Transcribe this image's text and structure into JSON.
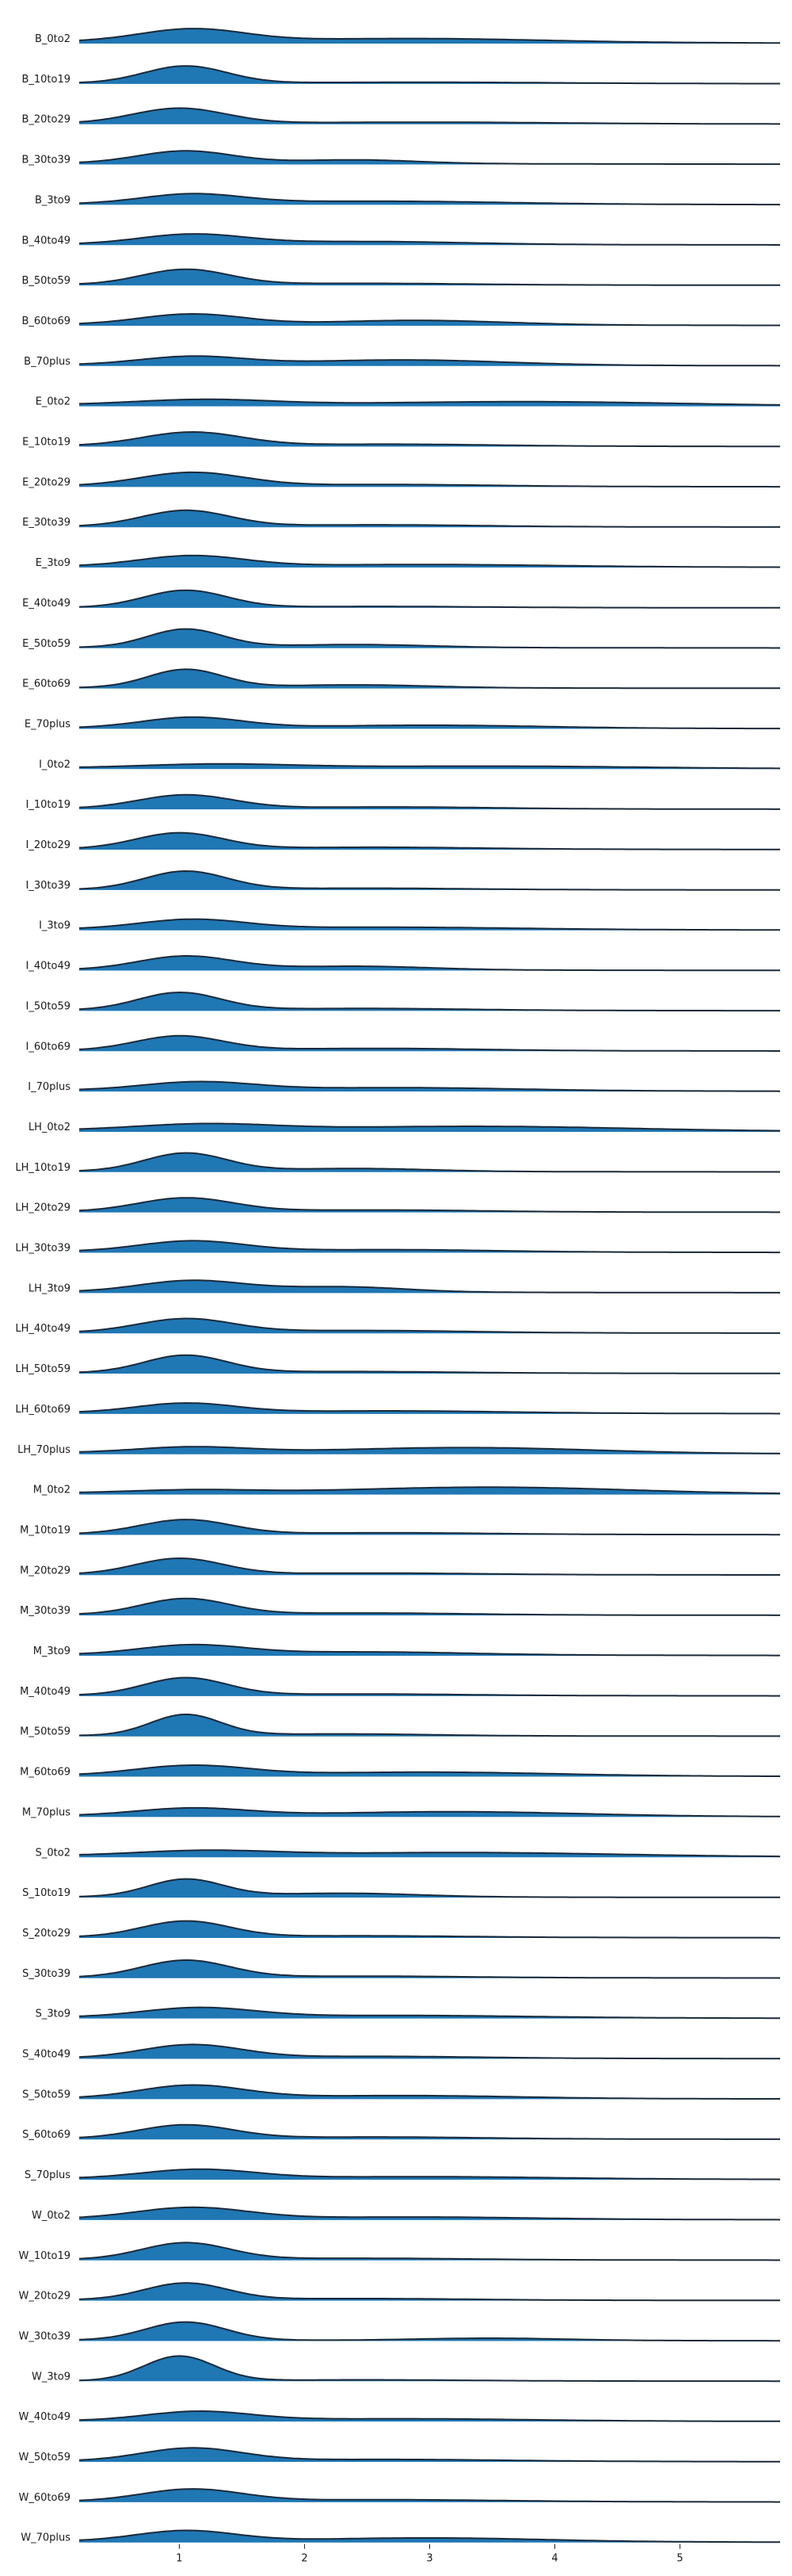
{
  "chart_data": {
    "type": "ridgeline",
    "xlim": [
      0.2,
      5.8
    ],
    "xticks": [
      "1",
      "2",
      "3",
      "4",
      "5"
    ],
    "fill_color": "#1f77b4",
    "line_color": "#1b2a3a",
    "rows": [
      {
        "label": "B_0to2",
        "peak": 1.1,
        "w": 0.42,
        "h": 0.33,
        "bump": 2.9,
        "bw": 1.0,
        "bh": 0.1,
        "floor": 0.05
      },
      {
        "label": "B_10to19",
        "peak": 1.05,
        "w": 0.33,
        "h": 0.45,
        "bump": 3.0,
        "bw": 1.0,
        "bh": 0.03,
        "floor": 0.02
      },
      {
        "label": "B_20to29",
        "peak": 1.0,
        "w": 0.37,
        "h": 0.4,
        "bump": 3.0,
        "bw": 1.0,
        "bh": 0.04,
        "floor": 0.02
      },
      {
        "label": "B_30to39",
        "peak": 1.05,
        "w": 0.38,
        "h": 0.33,
        "bump": 2.4,
        "bw": 0.5,
        "bh": 0.1,
        "floor": 0.03
      },
      {
        "label": "B_3to9",
        "peak": 1.1,
        "w": 0.4,
        "h": 0.25,
        "bump": 2.6,
        "bw": 1.0,
        "bh": 0.08,
        "floor": 0.02
      },
      {
        "label": "B_40to49",
        "peak": 1.1,
        "w": 0.42,
        "h": 0.26,
        "bump": 2.5,
        "bw": 0.8,
        "bh": 0.08,
        "floor": 0.02
      },
      {
        "label": "B_50to59",
        "peak": 1.05,
        "w": 0.35,
        "h": 0.4,
        "bump": 2.5,
        "bw": 0.8,
        "bh": 0.04,
        "floor": 0.02
      },
      {
        "label": "B_60to69",
        "peak": 1.1,
        "w": 0.42,
        "h": 0.28,
        "bump": 2.9,
        "bw": 0.7,
        "bh": 0.12,
        "floor": 0.03
      },
      {
        "label": "B_70plus",
        "peak": 1.1,
        "w": 0.42,
        "h": 0.22,
        "bump": 2.8,
        "bw": 0.8,
        "bh": 0.14,
        "floor": 0.03
      },
      {
        "label": "E_0to2",
        "peak": 1.2,
        "w": 0.55,
        "h": 0.14,
        "bump": 3.8,
        "bw": 1.2,
        "bh": 0.1,
        "floor": 0.04
      },
      {
        "label": "E_10to19",
        "peak": 1.1,
        "w": 0.4,
        "h": 0.36,
        "bump": 2.7,
        "bw": 0.8,
        "bh": 0.05,
        "floor": 0.02
      },
      {
        "label": "E_20to29",
        "peak": 1.1,
        "w": 0.42,
        "h": 0.36,
        "bump": 2.7,
        "bw": 0.8,
        "bh": 0.05,
        "floor": 0.02
      },
      {
        "label": "E_30to39",
        "peak": 1.05,
        "w": 0.35,
        "h": 0.42,
        "bump": 2.6,
        "bw": 0.8,
        "bh": 0.05,
        "floor": 0.02
      },
      {
        "label": "E_3to9",
        "peak": 1.1,
        "w": 0.42,
        "h": 0.28,
        "bump": 3.0,
        "bw": 1.0,
        "bh": 0.06,
        "floor": 0.03
      },
      {
        "label": "E_40to49",
        "peak": 1.05,
        "w": 0.33,
        "h": 0.45,
        "bump": 2.6,
        "bw": 0.8,
        "bh": 0.03,
        "floor": 0.01
      },
      {
        "label": "E_50to59",
        "peak": 1.05,
        "w": 0.3,
        "h": 0.48,
        "bump": 2.4,
        "bw": 0.6,
        "bh": 0.08,
        "floor": 0.02
      },
      {
        "label": "E_60to69",
        "peak": 1.05,
        "w": 0.3,
        "h": 0.48,
        "bump": 2.4,
        "bw": 0.6,
        "bh": 0.08,
        "floor": 0.02
      },
      {
        "label": "E_70plus",
        "peak": 1.1,
        "w": 0.4,
        "h": 0.28,
        "bump": 3.0,
        "bw": 0.9,
        "bh": 0.08,
        "floor": 0.02
      },
      {
        "label": "I_0to2",
        "peak": 1.3,
        "w": 0.6,
        "h": 0.1,
        "bump": 3.5,
        "bw": 1.2,
        "bh": 0.06,
        "floor": 0.03
      },
      {
        "label": "I_10to19",
        "peak": 1.05,
        "w": 0.38,
        "h": 0.36,
        "bump": 2.7,
        "bw": 0.8,
        "bh": 0.05,
        "floor": 0.02
      },
      {
        "label": "I_20to29",
        "peak": 1.0,
        "w": 0.35,
        "h": 0.42,
        "bump": 2.6,
        "bw": 0.8,
        "bh": 0.05,
        "floor": 0.02
      },
      {
        "label": "I_30to39",
        "peak": 1.05,
        "w": 0.33,
        "h": 0.48,
        "bump": 2.5,
        "bw": 0.8,
        "bh": 0.04,
        "floor": 0.01
      },
      {
        "label": "I_3to9",
        "peak": 1.1,
        "w": 0.42,
        "h": 0.25,
        "bump": 2.7,
        "bw": 1.0,
        "bh": 0.06,
        "floor": 0.03
      },
      {
        "label": "I_40to49",
        "peak": 1.05,
        "w": 0.38,
        "h": 0.36,
        "bump": 2.4,
        "bw": 0.6,
        "bh": 0.1,
        "floor": 0.02
      },
      {
        "label": "I_50to59",
        "peak": 1.0,
        "w": 0.33,
        "h": 0.46,
        "bump": 2.5,
        "bw": 0.8,
        "bh": 0.05,
        "floor": 0.02
      },
      {
        "label": "I_60to69",
        "peak": 1.0,
        "w": 0.35,
        "h": 0.38,
        "bump": 2.6,
        "bw": 0.8,
        "bh": 0.06,
        "floor": 0.02
      },
      {
        "label": "I_70plus",
        "peak": 1.15,
        "w": 0.45,
        "h": 0.22,
        "bump": 2.8,
        "bw": 0.9,
        "bh": 0.08,
        "floor": 0.03
      },
      {
        "label": "LH_0to2",
        "peak": 1.2,
        "w": 0.55,
        "h": 0.16,
        "bump": 3.4,
        "bw": 1.2,
        "bh": 0.12,
        "floor": 0.04
      },
      {
        "label": "LH_10to19",
        "peak": 1.05,
        "w": 0.33,
        "h": 0.48,
        "bump": 2.4,
        "bw": 0.6,
        "bh": 0.08,
        "floor": 0.02
      },
      {
        "label": "LH_20to29",
        "peak": 1.05,
        "w": 0.38,
        "h": 0.36,
        "bump": 2.6,
        "bw": 0.8,
        "bh": 0.05,
        "floor": 0.02
      },
      {
        "label": "LH_30to39",
        "peak": 1.1,
        "w": 0.42,
        "h": 0.28,
        "bump": 2.7,
        "bw": 0.8,
        "bh": 0.06,
        "floor": 0.03
      },
      {
        "label": "LH_3to9",
        "peak": 1.1,
        "w": 0.42,
        "h": 0.3,
        "bump": 2.3,
        "bw": 0.5,
        "bh": 0.14,
        "floor": 0.03
      },
      {
        "label": "LH_40to49",
        "peak": 1.05,
        "w": 0.38,
        "h": 0.36,
        "bump": 2.5,
        "bw": 0.8,
        "bh": 0.06,
        "floor": 0.02
      },
      {
        "label": "LH_50to59",
        "peak": 1.05,
        "w": 0.33,
        "h": 0.46,
        "bump": 2.4,
        "bw": 0.8,
        "bh": 0.04,
        "floor": 0.02
      },
      {
        "label": "LH_60to69",
        "peak": 1.05,
        "w": 0.4,
        "h": 0.25,
        "bump": 2.7,
        "bw": 0.9,
        "bh": 0.06,
        "floor": 0.03
      },
      {
        "label": "LH_70plus",
        "peak": 1.1,
        "w": 0.45,
        "h": 0.15,
        "bump": 3.3,
        "bw": 1.0,
        "bh": 0.15,
        "floor": 0.04
      },
      {
        "label": "M_0to2",
        "peak": 1.1,
        "w": 0.5,
        "h": 0.08,
        "bump": 3.5,
        "bw": 1.1,
        "bh": 0.17,
        "floor": 0.04
      },
      {
        "label": "M_10to19",
        "peak": 1.05,
        "w": 0.36,
        "h": 0.38,
        "bump": 2.7,
        "bw": 0.8,
        "bh": 0.04,
        "floor": 0.02
      },
      {
        "label": "M_20to29",
        "peak": 1.0,
        "w": 0.35,
        "h": 0.42,
        "bump": 2.6,
        "bw": 0.8,
        "bh": 0.04,
        "floor": 0.02
      },
      {
        "label": "M_30to39",
        "peak": 1.05,
        "w": 0.35,
        "h": 0.42,
        "bump": 2.5,
        "bw": 0.8,
        "bh": 0.05,
        "floor": 0.02
      },
      {
        "label": "M_3to9",
        "peak": 1.1,
        "w": 0.42,
        "h": 0.25,
        "bump": 2.5,
        "bw": 0.8,
        "bh": 0.08,
        "floor": 0.03
      },
      {
        "label": "M_40to49",
        "peak": 1.05,
        "w": 0.33,
        "h": 0.46,
        "bump": 2.5,
        "bw": 0.8,
        "bh": 0.04,
        "floor": 0.02
      },
      {
        "label": "M_50to59",
        "peak": 1.05,
        "w": 0.28,
        "h": 0.55,
        "bump": 2.3,
        "bw": 0.7,
        "bh": 0.05,
        "floor": 0.02
      },
      {
        "label": "M_60to69",
        "peak": 1.1,
        "w": 0.45,
        "h": 0.26,
        "bump": 3.0,
        "bw": 1.0,
        "bh": 0.1,
        "floor": 0.03
      },
      {
        "label": "M_70plus",
        "peak": 1.1,
        "w": 0.45,
        "h": 0.2,
        "bump": 3.2,
        "bw": 1.0,
        "bh": 0.12,
        "floor": 0.03
      },
      {
        "label": "S_0to2",
        "peak": 1.2,
        "w": 0.55,
        "h": 0.13,
        "bump": 3.3,
        "bw": 1.2,
        "bh": 0.1,
        "floor": 0.04
      },
      {
        "label": "S_10to19",
        "peak": 1.05,
        "w": 0.3,
        "h": 0.46,
        "bump": 2.3,
        "bw": 0.6,
        "bh": 0.1,
        "floor": 0.02
      },
      {
        "label": "S_20to29",
        "peak": 1.05,
        "w": 0.35,
        "h": 0.42,
        "bump": 2.5,
        "bw": 0.8,
        "bh": 0.04,
        "floor": 0.02
      },
      {
        "label": "S_30to39",
        "peak": 1.05,
        "w": 0.35,
        "h": 0.45,
        "bump": 2.5,
        "bw": 0.8,
        "bh": 0.04,
        "floor": 0.02
      },
      {
        "label": "S_3to9",
        "peak": 1.15,
        "w": 0.45,
        "h": 0.25,
        "bump": 2.8,
        "bw": 1.0,
        "bh": 0.06,
        "floor": 0.03
      },
      {
        "label": "S_40to49",
        "peak": 1.1,
        "w": 0.4,
        "h": 0.35,
        "bump": 2.6,
        "bw": 0.8,
        "bh": 0.05,
        "floor": 0.02
      },
      {
        "label": "S_50to59",
        "peak": 1.1,
        "w": 0.42,
        "h": 0.34,
        "bump": 2.8,
        "bw": 0.9,
        "bh": 0.08,
        "floor": 0.02
      },
      {
        "label": "S_60to69",
        "peak": 1.05,
        "w": 0.38,
        "h": 0.36,
        "bump": 2.6,
        "bw": 0.8,
        "bh": 0.05,
        "floor": 0.02
      },
      {
        "label": "S_70plus",
        "peak": 1.15,
        "w": 0.45,
        "h": 0.24,
        "bump": 3.0,
        "bw": 1.0,
        "bh": 0.06,
        "floor": 0.03
      },
      {
        "label": "W_0to2",
        "peak": 1.1,
        "w": 0.45,
        "h": 0.3,
        "bump": 2.9,
        "bw": 0.9,
        "bh": 0.06,
        "floor": 0.03
      },
      {
        "label": "W_10to19",
        "peak": 1.05,
        "w": 0.35,
        "h": 0.44,
        "bump": 2.5,
        "bw": 0.8,
        "bh": 0.04,
        "floor": 0.02
      },
      {
        "label": "W_20to29",
        "peak": 1.05,
        "w": 0.33,
        "h": 0.44,
        "bump": 2.5,
        "bw": 0.8,
        "bh": 0.04,
        "floor": 0.02
      },
      {
        "label": "W_30to39",
        "peak": 1.05,
        "w": 0.32,
        "h": 0.48,
        "bump": 3.5,
        "bw": 0.6,
        "bh": 0.06,
        "floor": 0.02
      },
      {
        "label": "W_3to9",
        "peak": 1.0,
        "w": 0.28,
        "h": 0.65,
        "bump": 2.5,
        "bw": 0.8,
        "bh": 0.03,
        "floor": 0.01
      },
      {
        "label": "W_40to49",
        "peak": 1.15,
        "w": 0.42,
        "h": 0.24,
        "bump": 2.8,
        "bw": 1.0,
        "bh": 0.06,
        "floor": 0.02
      },
      {
        "label": "W_50to59",
        "peak": 1.1,
        "w": 0.4,
        "h": 0.34,
        "bump": 2.7,
        "bw": 0.9,
        "bh": 0.05,
        "floor": 0.02
      },
      {
        "label": "W_60to69",
        "peak": 1.1,
        "w": 0.4,
        "h": 0.32,
        "bump": 2.7,
        "bw": 0.9,
        "bh": 0.05,
        "floor": 0.02
      },
      {
        "label": "W_70plus",
        "peak": 1.05,
        "w": 0.4,
        "h": 0.28,
        "bump": 3.0,
        "bw": 0.9,
        "bh": 0.1,
        "floor": 0.03
      }
    ]
  }
}
